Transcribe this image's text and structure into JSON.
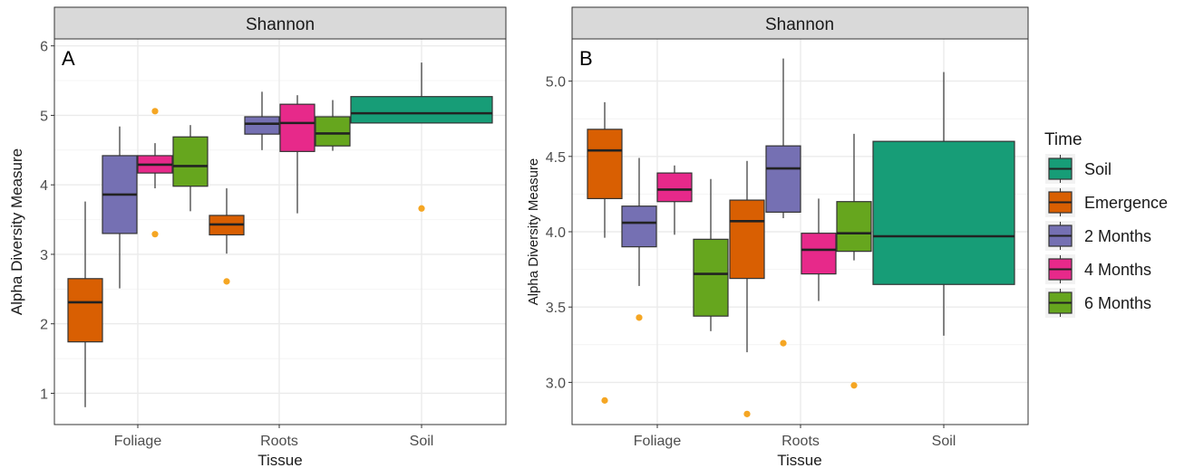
{
  "chart_data": [
    {
      "type": "boxplot",
      "panel_label": "A",
      "facet_title": "Shannon",
      "xlabel": "Tissue",
      "ylabel": "Alpha Diversity Measure",
      "categories": [
        "Foliage",
        "Roots",
        "Soil"
      ],
      "ylim": [
        0.55,
        6.1
      ],
      "yticks": [
        1,
        2,
        3,
        4,
        5,
        6
      ],
      "ytick_labels": [
        "1",
        "2",
        "3",
        "4",
        "5",
        "6"
      ],
      "boxes": [
        {
          "category": "Foliage",
          "group": "Emergence",
          "whisker_low": 0.8,
          "q1": 1.74,
          "median": 2.31,
          "q3": 2.65,
          "whisker_high": 3.76,
          "outliers": []
        },
        {
          "category": "Foliage",
          "group": "2 Months",
          "whisker_low": 2.51,
          "q1": 3.3,
          "median": 3.86,
          "q3": 4.42,
          "whisker_high": 4.84,
          "outliers": []
        },
        {
          "category": "Foliage",
          "group": "4 Months",
          "whisker_low": 3.95,
          "q1": 4.17,
          "median": 4.29,
          "q3": 4.42,
          "whisker_high": 4.6,
          "outliers": [
            5.06,
            3.29
          ]
        },
        {
          "category": "Foliage",
          "group": "6 Months",
          "whisker_low": 3.62,
          "q1": 3.98,
          "median": 4.27,
          "q3": 4.69,
          "whisker_high": 4.86,
          "outliers": []
        },
        {
          "category": "Roots",
          "group": "Emergence",
          "whisker_low": 3.01,
          "q1": 3.28,
          "median": 3.43,
          "q3": 3.56,
          "whisker_high": 3.95,
          "outliers": [
            2.61
          ]
        },
        {
          "category": "Roots",
          "group": "2 Months",
          "whisker_low": 4.5,
          "q1": 4.73,
          "median": 4.88,
          "q3": 4.98,
          "whisker_high": 5.34,
          "outliers": []
        },
        {
          "category": "Roots",
          "group": "4 Months",
          "whisker_low": 3.59,
          "q1": 4.48,
          "median": 4.89,
          "q3": 5.16,
          "whisker_high": 5.29,
          "outliers": []
        },
        {
          "category": "Roots",
          "group": "6 Months",
          "whisker_low": 4.49,
          "q1": 4.56,
          "median": 4.74,
          "q3": 4.98,
          "whisker_high": 5.22,
          "outliers": []
        },
        {
          "category": "Soil",
          "group": "Soil",
          "whisker_low": 4.89,
          "q1": 4.89,
          "median": 5.03,
          "q3": 5.27,
          "whisker_high": 5.76,
          "outliers": [
            3.66
          ]
        }
      ]
    },
    {
      "type": "boxplot",
      "panel_label": "B",
      "facet_title": "Shannon",
      "xlabel": "Tissue",
      "ylabel": "Alpha Diversity Measure",
      "categories": [
        "Foliage",
        "Roots",
        "Soil"
      ],
      "ylim": [
        2.72,
        5.28
      ],
      "yticks": [
        3.0,
        3.5,
        4.0,
        4.5,
        5.0
      ],
      "ytick_labels": [
        "3.0",
        "3.5",
        "4.0",
        "4.5",
        "5.0"
      ],
      "boxes": [
        {
          "category": "Foliage",
          "group": "Emergence",
          "whisker_low": 3.96,
          "q1": 4.22,
          "median": 4.54,
          "q3": 4.68,
          "whisker_high": 4.86,
          "outliers": [
            2.88
          ]
        },
        {
          "category": "Foliage",
          "group": "2 Months",
          "whisker_low": 3.64,
          "q1": 3.9,
          "median": 4.06,
          "q3": 4.17,
          "whisker_high": 4.49,
          "outliers": [
            3.43
          ]
        },
        {
          "category": "Foliage",
          "group": "4 Months",
          "whisker_low": 3.98,
          "q1": 4.2,
          "median": 4.28,
          "q3": 4.39,
          "whisker_high": 4.44,
          "outliers": []
        },
        {
          "category": "Foliage",
          "group": "6 Months",
          "whisker_low": 3.34,
          "q1": 3.44,
          "median": 3.72,
          "q3": 3.95,
          "whisker_high": 4.35,
          "outliers": []
        },
        {
          "category": "Roots",
          "group": "Emergence",
          "whisker_low": 3.2,
          "q1": 3.69,
          "median": 4.07,
          "q3": 4.21,
          "whisker_high": 4.47,
          "outliers": [
            2.79
          ]
        },
        {
          "category": "Roots",
          "group": "2 Months",
          "whisker_low": 4.09,
          "q1": 4.13,
          "median": 4.42,
          "q3": 4.57,
          "whisker_high": 5.15,
          "outliers": [
            3.26
          ]
        },
        {
          "category": "Roots",
          "group": "4 Months",
          "whisker_low": 3.54,
          "q1": 3.72,
          "median": 3.88,
          "q3": 3.99,
          "whisker_high": 4.22,
          "outliers": []
        },
        {
          "category": "Roots",
          "group": "6 Months",
          "whisker_low": 3.81,
          "q1": 3.87,
          "median": 3.99,
          "q3": 4.2,
          "whisker_high": 4.65,
          "outliers": [
            2.98
          ]
        },
        {
          "category": "Soil",
          "group": "Soil",
          "whisker_low": 3.31,
          "q1": 3.65,
          "median": 3.97,
          "q3": 4.6,
          "whisker_high": 5.06,
          "outliers": []
        }
      ]
    }
  ],
  "legend": {
    "title": "Time",
    "placement": "right",
    "items": [
      {
        "label": "Soil",
        "color": "#179d77"
      },
      {
        "label": "Emergence",
        "color": "#d95f02"
      },
      {
        "label": "2 Months",
        "color": "#7570b3"
      },
      {
        "label": "4 Months",
        "color": "#e7298a"
      },
      {
        "label": "6 Months",
        "color": "#66a61e"
      }
    ]
  },
  "outlier_color": "#f5a623"
}
